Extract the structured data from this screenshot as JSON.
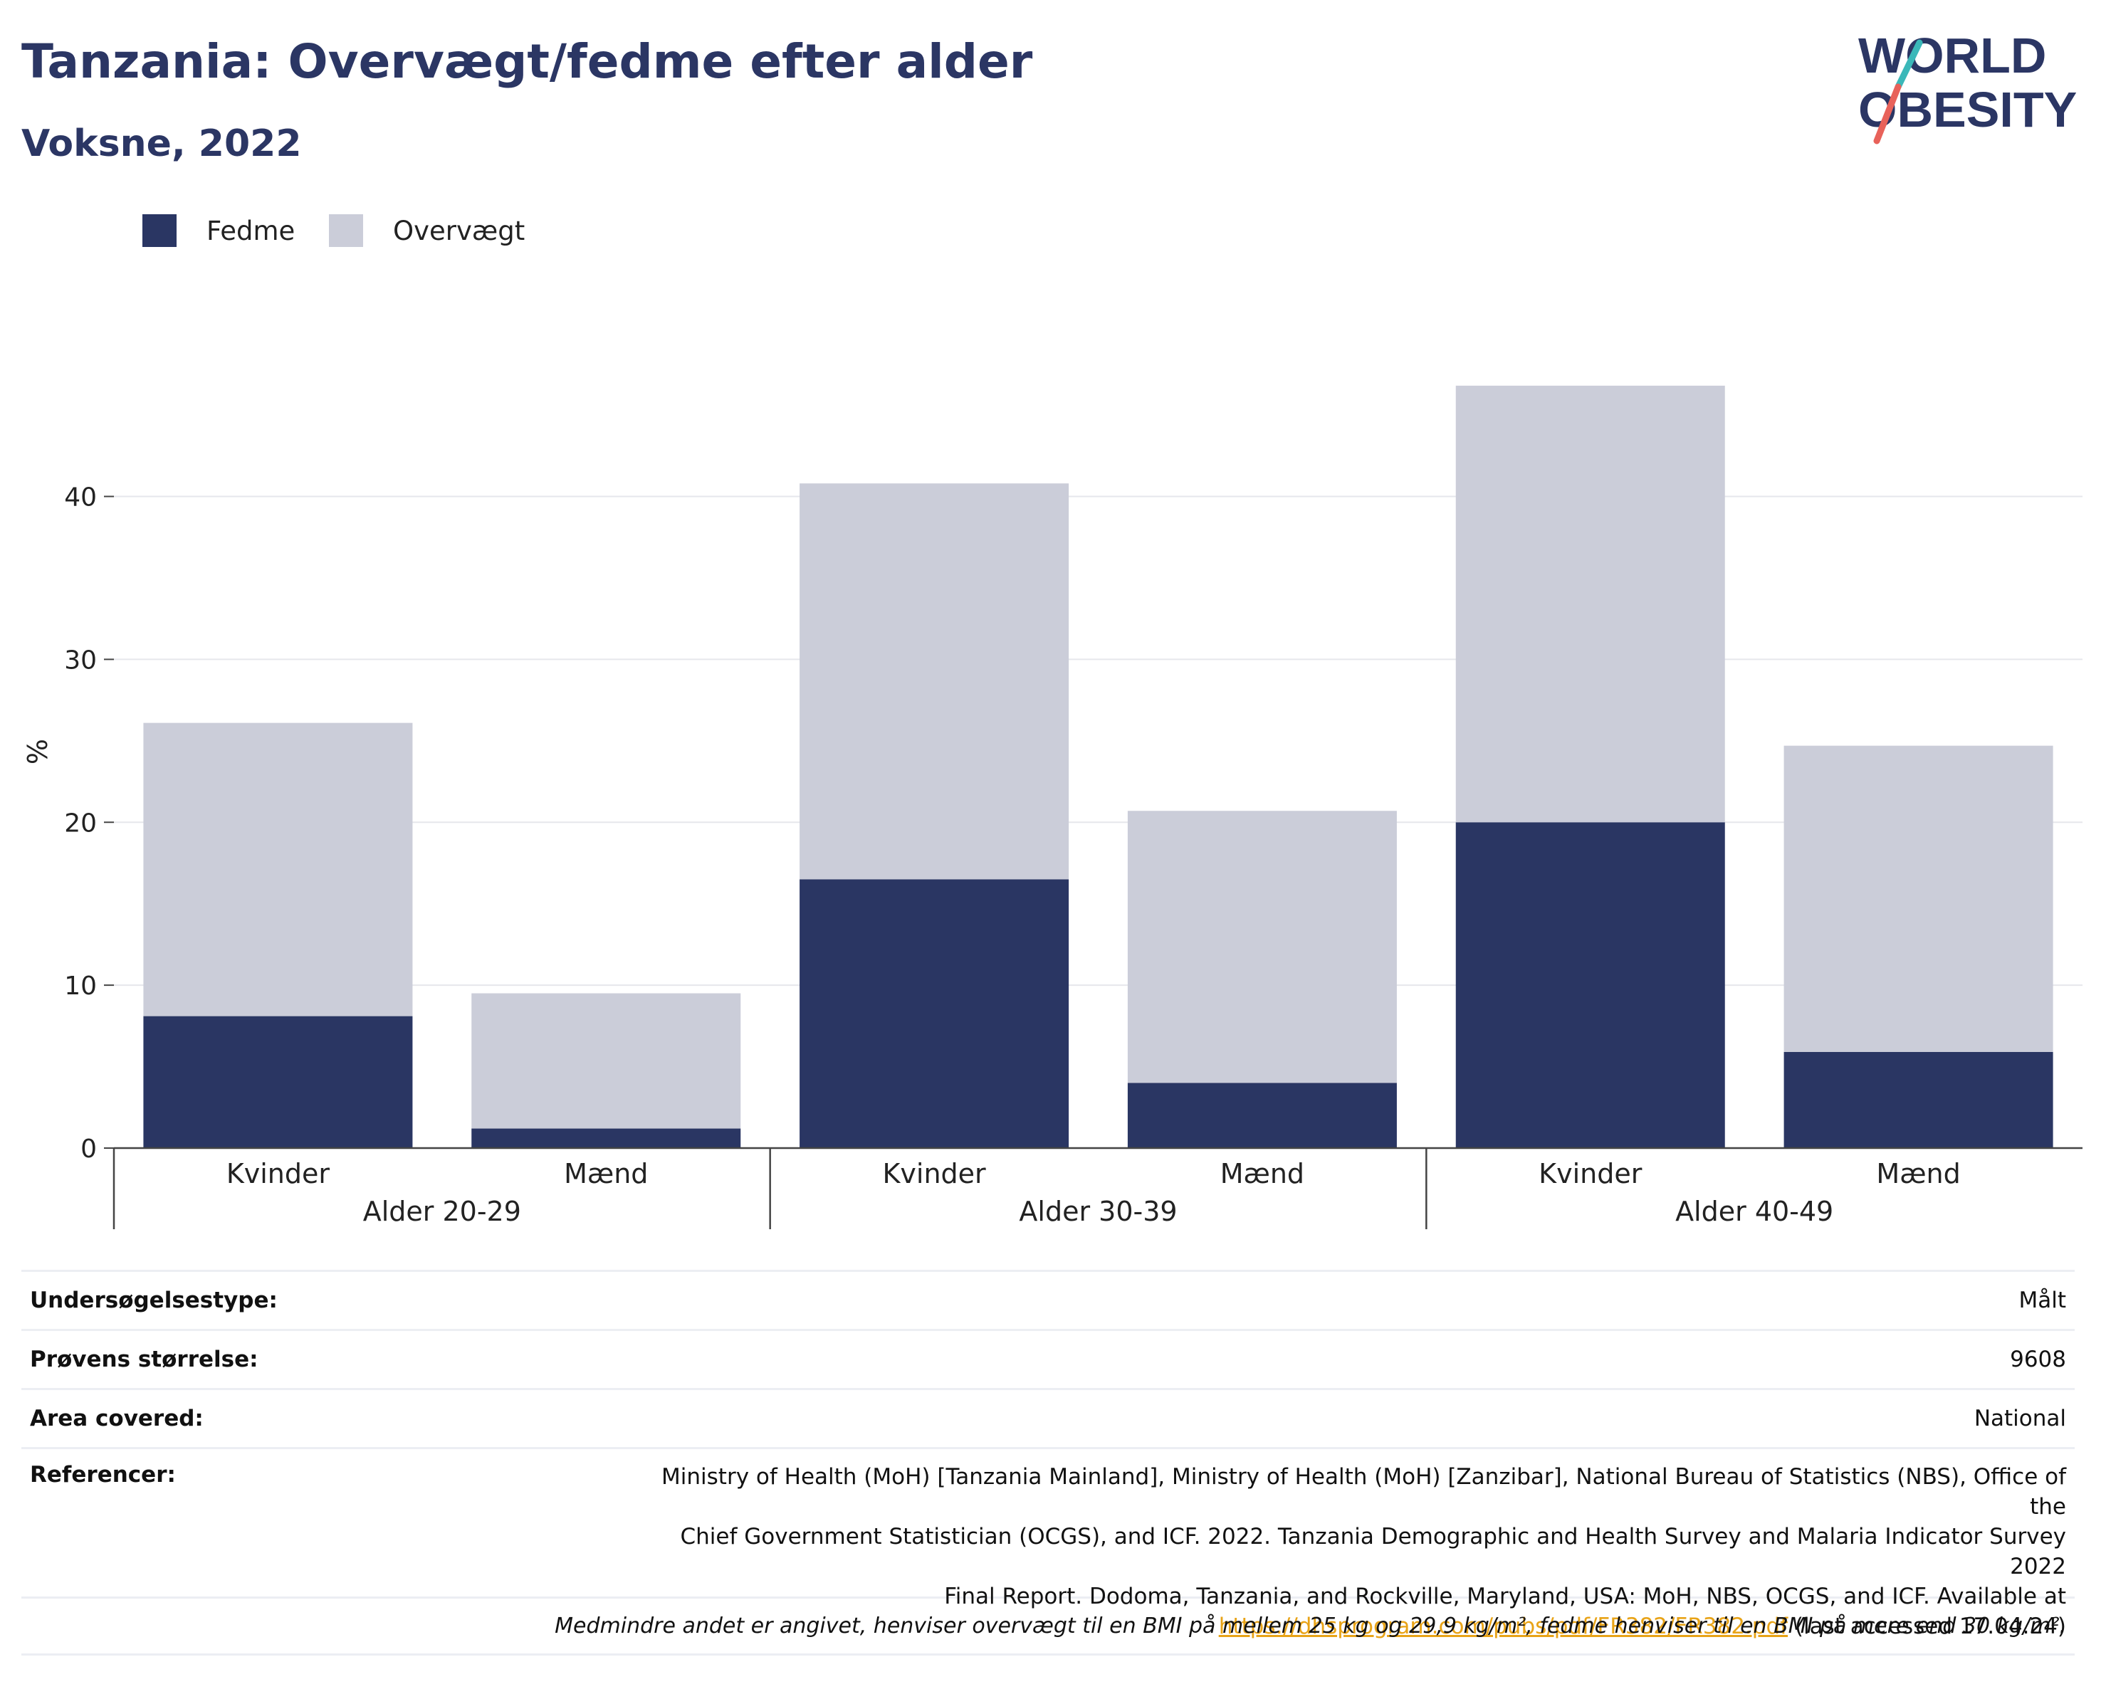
{
  "header": {
    "title": "Tanzania: Overvægt/fedme efter alder",
    "subtitle": "Voksne, 2022"
  },
  "logo": {
    "line1": "WORLD",
    "line2": "OBESITY",
    "accent_red": "#e8625a",
    "accent_teal": "#3bb8b9",
    "text_color": "#2b3664"
  },
  "legend": {
    "items": [
      {
        "label": "Fedme",
        "color": "#2a3663"
      },
      {
        "label": "Overvægt",
        "color": "#cbcdd9"
      }
    ]
  },
  "chart_data": {
    "type": "bar",
    "stacked": true,
    "ylabel": "%",
    "ylim": [
      0,
      50
    ],
    "yticks": [
      0,
      10,
      20,
      30,
      40
    ],
    "grid": true,
    "legend_position": "top-left",
    "groups": [
      "Alder 20-29",
      "Alder 30-39",
      "Alder 40-49"
    ],
    "categories": [
      "Kvinder",
      "Mænd",
      "Kvinder",
      "Mænd",
      "Kvinder",
      "Mænd"
    ],
    "category_group": [
      0,
      0,
      1,
      1,
      2,
      2
    ],
    "series": [
      {
        "name": "Fedme",
        "color": "#2a3663",
        "values": [
          8.1,
          1.2,
          16.5,
          4.0,
          20.0,
          5.9
        ]
      },
      {
        "name": "Overvægt",
        "color": "#cbcdd9",
        "values": [
          18.0,
          8.3,
          24.3,
          16.7,
          26.8,
          18.8
        ]
      }
    ]
  },
  "info": {
    "rows": [
      {
        "label": "Undersøgelsestype:",
        "value": "Målt"
      },
      {
        "label": "Prøvens størrelse:",
        "value": "9608"
      },
      {
        "label": "Area covered:",
        "value": "National"
      }
    ],
    "references": {
      "label": "Referencer:",
      "line1": "Ministry of Health (MoH) [Tanzania Mainland], Ministry of Health (MoH) [Zanzibar], National Bureau of Statistics (NBS), Office of the",
      "line2": "Chief Government Statistician (OCGS), and ICF. 2022. Tanzania Demographic and Health Survey and Malaria Indicator Survey 2022",
      "line3": "Final Report. Dodoma, Tanzania, and Rockville, Maryland, USA: MoH, NBS, OCGS, and ICF. Available at",
      "link": "https://dhsprogram.com/pubs/pdf/FR382/FR382.pdf",
      "suffix": " (last accessed 17.04.24)"
    },
    "footnote": "Medmindre andet er angivet, henviser overvægt til en BMI på mellem 25 kg og 29,9 kg/m², fedme henviser til en BMI på mere end 30 kg/m²."
  }
}
